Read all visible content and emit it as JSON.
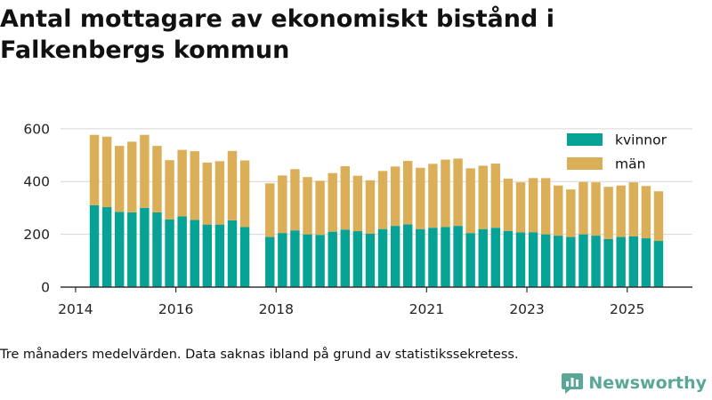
{
  "title": "Antal mottagare av ekonomiskt bistånd i Falkenbergs kommun",
  "footnote": "Tre månaders medelvärden. Data saknas ibland på grund av statistikssekretess.",
  "brand": {
    "name": "Newsworthy",
    "icon": "bar-chart-logo-icon",
    "color": "#5aa79a"
  },
  "colors": {
    "kvinnor": "#06a296",
    "man": "#dbaf57",
    "axis": "#333333",
    "grid": "#d6d6d6"
  },
  "chart_data": {
    "type": "bar",
    "stacked": true,
    "title": "Antal mottagare av ekonomiskt bistånd i Falkenbergs kommun",
    "xlabel": "",
    "ylabel": "",
    "ylim": [
      0,
      650
    ],
    "yticks": [
      0,
      200,
      400,
      600
    ],
    "grid": true,
    "legend_position": "top-right",
    "x_unit": "year",
    "xlim": [
      2013.7,
      2026.3
    ],
    "xtick_labels": [
      {
        "year": 2014,
        "label": "2014"
      },
      {
        "year": 2016,
        "label": "2016"
      },
      {
        "year": 2018,
        "label": "2018"
      },
      {
        "year": 2021,
        "label": "2021"
      },
      {
        "year": 2023,
        "label": "2023"
      },
      {
        "year": 2025,
        "label": "2025"
      }
    ],
    "x": [
      2014.375,
      2014.625,
      2014.875,
      2015.125,
      2015.375,
      2015.625,
      2015.875,
      2016.125,
      2016.375,
      2016.625,
      2016.875,
      2017.125,
      2017.375,
      2017.875,
      2018.125,
      2018.375,
      2018.625,
      2018.875,
      2019.125,
      2019.375,
      2019.625,
      2019.875,
      2020.125,
      2020.375,
      2020.625,
      2020.875,
      2021.125,
      2021.375,
      2021.625,
      2021.875,
      2022.125,
      2022.375,
      2022.625,
      2022.875,
      2023.125,
      2023.375,
      2023.625,
      2023.875,
      2024.125,
      2024.375,
      2024.625,
      2024.875,
      2025.125,
      2025.375,
      2025.625
    ],
    "series": [
      {
        "name": "kvinnor",
        "values": [
          310,
          303,
          285,
          283,
          300,
          283,
          256,
          268,
          255,
          237,
          237,
          253,
          228,
          190,
          205,
          215,
          200,
          198,
          210,
          218,
          212,
          202,
          220,
          232,
          238,
          220,
          225,
          228,
          232,
          205,
          220,
          225,
          213,
          207,
          208,
          200,
          195,
          190,
          200,
          195,
          182,
          190,
          192,
          185,
          175
        ]
      },
      {
        "name": "män",
        "values": [
          267,
          267,
          250,
          268,
          277,
          252,
          225,
          252,
          260,
          235,
          240,
          263,
          252,
          203,
          218,
          232,
          217,
          205,
          222,
          240,
          210,
          203,
          220,
          225,
          240,
          232,
          242,
          255,
          255,
          245,
          240,
          243,
          198,
          190,
          205,
          213,
          190,
          180,
          198,
          202,
          198,
          195,
          205,
          198,
          188
        ]
      }
    ]
  }
}
